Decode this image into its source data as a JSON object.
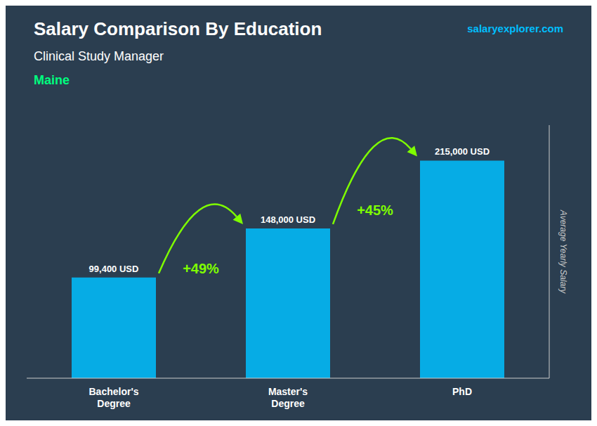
{
  "chart_data": {
    "type": "bar",
    "title": "Salary Comparison By Education",
    "subtitle": "Clinical Study Manager",
    "location": "Maine",
    "watermark": "salaryexplorer.com",
    "ylabel": "Average Yearly Salary",
    "categories": [
      "Bachelor's\nDegree",
      "Master's\nDegree",
      "PhD"
    ],
    "values": [
      99400,
      148000,
      215000
    ],
    "value_labels": [
      "99,400 USD",
      "148,000 USD",
      "215,000 USD"
    ],
    "data_labels": true,
    "annotations": [
      "+49%",
      "+45%"
    ],
    "color": "#00BFFF",
    "ylim": [
      0,
      250000
    ],
    "tick_labels": "x",
    "grid": false
  }
}
